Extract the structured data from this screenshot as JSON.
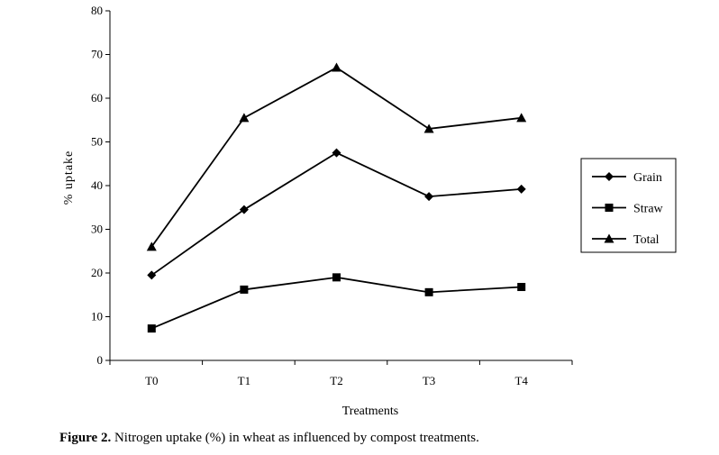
{
  "chart_data": {
    "type": "line",
    "categories": [
      "T0",
      "T1",
      "T2",
      "T3",
      "T4"
    ],
    "series": [
      {
        "name": "Grain",
        "marker": "diamond",
        "values": [
          19.5,
          34.5,
          47.5,
          37.5,
          39.2
        ]
      },
      {
        "name": "Straw",
        "marker": "square",
        "values": [
          7.3,
          16.2,
          19.0,
          15.6,
          16.8
        ]
      },
      {
        "name": "Total",
        "marker": "triangle",
        "values": [
          26.0,
          55.5,
          67.0,
          53.0,
          55.5
        ]
      }
    ],
    "xlabel": "Treatments",
    "ylabel": "% uptake",
    "ylim": [
      0,
      80
    ],
    "yticks": [
      0,
      10,
      20,
      30,
      40,
      50,
      60,
      70,
      80
    ],
    "legend": "right",
    "grid": false,
    "color": "#000000"
  },
  "caption": {
    "label": "Figure 2.",
    "text": " Nitrogen uptake (%) in wheat as influenced by compost treatments."
  }
}
